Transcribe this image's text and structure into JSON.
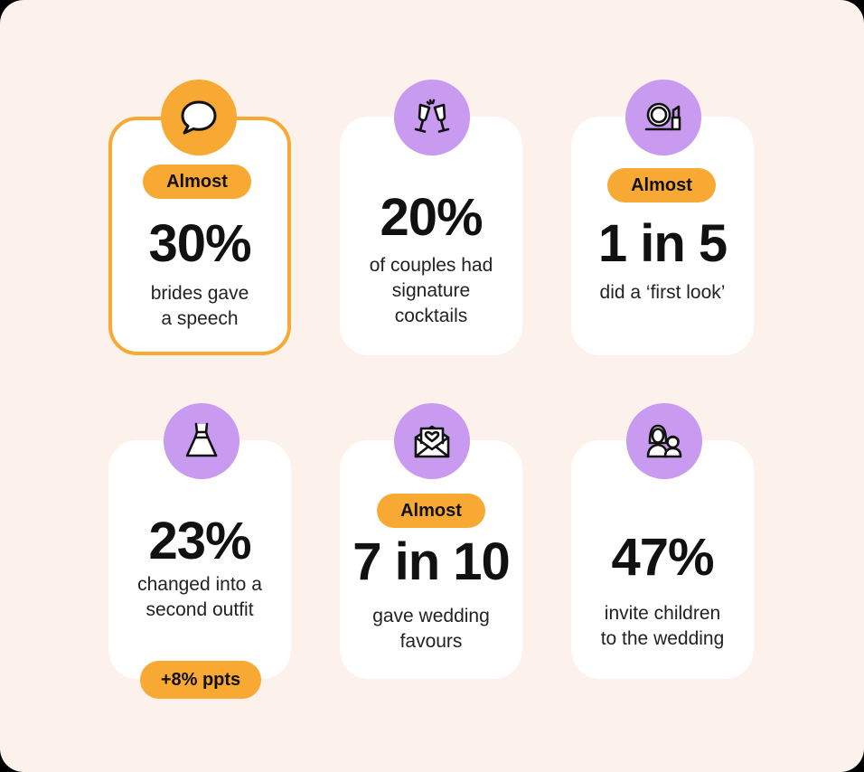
{
  "colors": {
    "background": "#fdf1ec",
    "card": "#ffffff",
    "accent_orange": "#f7a934",
    "icon_purple": "#c89af0",
    "text": "#111111"
  },
  "stats": [
    {
      "icon": "speech-bubble-icon",
      "badge": "Almost",
      "value": "30%",
      "desc_lines": [
        "brides gave",
        "a speech"
      ]
    },
    {
      "icon": "champagne-glasses-icon",
      "value": "20%",
      "desc_lines": [
        "of couples had",
        "signature",
        "cocktails"
      ]
    },
    {
      "icon": "mirror-lipstick-icon",
      "badge": "Almost",
      "value": "1 in 5",
      "desc_lines": [
        "did a ‘first look’"
      ]
    },
    {
      "icon": "wedding-dress-icon",
      "value": "23%",
      "desc_lines": [
        "changed into a",
        "second outfit"
      ],
      "footer_badge": "+8% ppts"
    },
    {
      "icon": "envelope-heart-icon",
      "badge": "Almost",
      "value": "7 in 10",
      "desc_lines": [
        "gave wedding",
        "favours"
      ]
    },
    {
      "icon": "woman-and-child-icon",
      "value": "47%",
      "desc_lines": [
        "invite children",
        "to the wedding"
      ]
    }
  ]
}
